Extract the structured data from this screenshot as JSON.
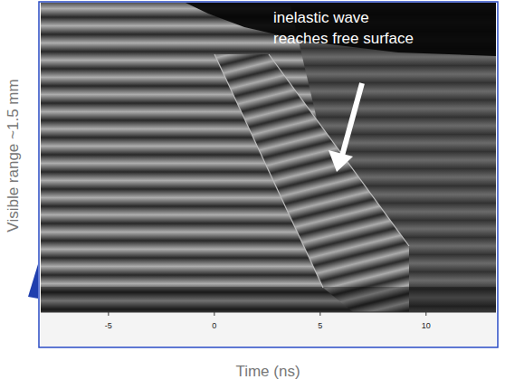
{
  "chart_data": {
    "type": "image",
    "xlabel": "Time (ns)",
    "ylabel": "Visible range ~1.5 mm",
    "xlim": [
      -8.2,
      13.3
    ],
    "xticks": [
      -5,
      0,
      5,
      10
    ],
    "annotations": [
      "inelastic wave",
      "reaches free surface"
    ]
  }
}
